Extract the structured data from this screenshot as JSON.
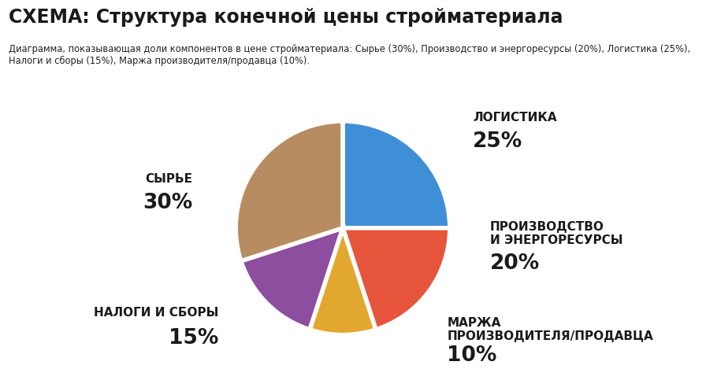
{
  "chart_data": {
    "type": "pie",
    "title": "СХЕМА: Структура конечной цены стройматериала",
    "subtitle": "Диаграмма, показывающая доли компонентов в цене стройматериала: Сырье (30%), Производство и энергоресурсы (20%), Логистика (25%), Налоги и сборы (15%), Маржа производителя/продавца (10%).",
    "categories": [
      "ЛОГИСТИКА",
      "ПРОИЗВОДСТВО\nИ ЭНЕРГОРЕСУРСЫ",
      "МАРЖА\nПРОИЗВОДИТЕЛЯ/ПРОДАВЦА",
      "НАЛОГИ И СБОРЫ",
      "СЫРЬЕ"
    ],
    "values": [
      25,
      20,
      10,
      15,
      30
    ],
    "value_labels": [
      "25%",
      "20%",
      "10%",
      "15%",
      "30%"
    ],
    "colors": [
      "#3F8FD6",
      "#E6553B",
      "#E2A72E",
      "#8D4E9F",
      "#B68C60"
    ]
  }
}
